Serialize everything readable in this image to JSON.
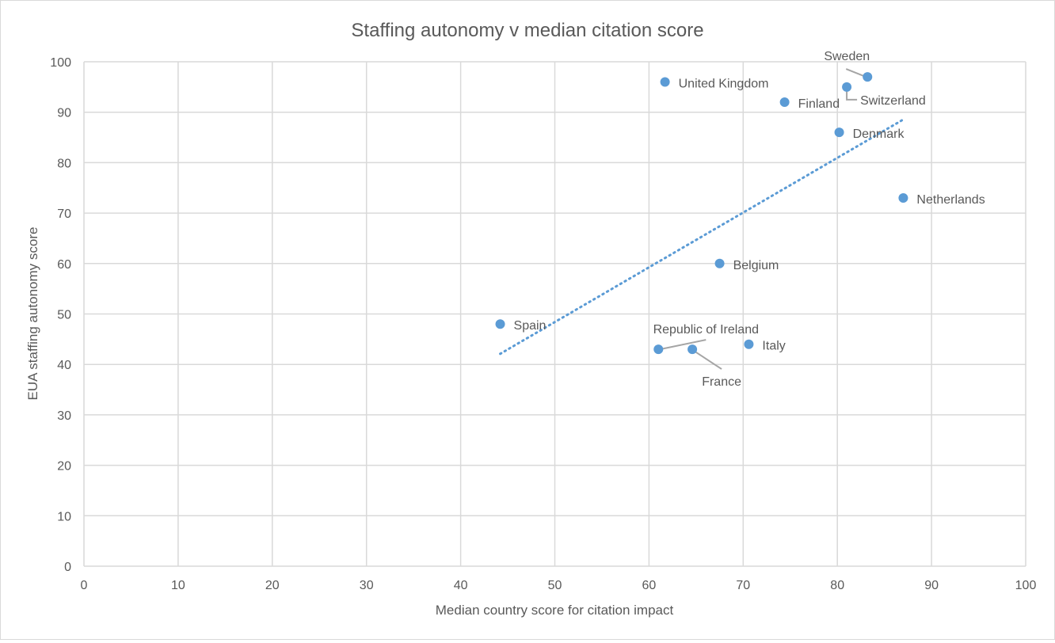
{
  "chart_data": {
    "type": "scatter",
    "title": "Staffing autonomy v median citation score",
    "xlabel": "Median country score for citation impact",
    "ylabel": "EUA staffing autonomy score",
    "xlim": [
      0,
      100
    ],
    "ylim": [
      0,
      100
    ],
    "xticks": [
      0,
      10,
      20,
      30,
      40,
      50,
      60,
      70,
      80,
      90,
      100
    ],
    "yticks": [
      0,
      10,
      20,
      30,
      40,
      50,
      60,
      70,
      80,
      90,
      100
    ],
    "grid": true,
    "trendline": "linear (dotted)",
    "colors": {
      "marker": "#5b9bd5",
      "grid": "#d9d9d9",
      "leader": "#a5a5a5"
    },
    "points": [
      {
        "label": "United Kingdom",
        "x": 61.7,
        "y": 96
      },
      {
        "label": "Finland",
        "x": 74.4,
        "y": 92
      },
      {
        "label": "Sweden",
        "x": 83.2,
        "y": 97
      },
      {
        "label": "Switzerland",
        "x": 81.0,
        "y": 95
      },
      {
        "label": "Denmark",
        "x": 80.2,
        "y": 86
      },
      {
        "label": "Netherlands",
        "x": 87.0,
        "y": 73
      },
      {
        "label": "Belgium",
        "x": 67.5,
        "y": 60
      },
      {
        "label": "Spain",
        "x": 44.2,
        "y": 48
      },
      {
        "label": "Republic of Ireland",
        "x": 61.0,
        "y": 43
      },
      {
        "label": "France",
        "x": 64.6,
        "y": 43
      },
      {
        "label": "Italy",
        "x": 70.6,
        "y": 44
      }
    ]
  }
}
